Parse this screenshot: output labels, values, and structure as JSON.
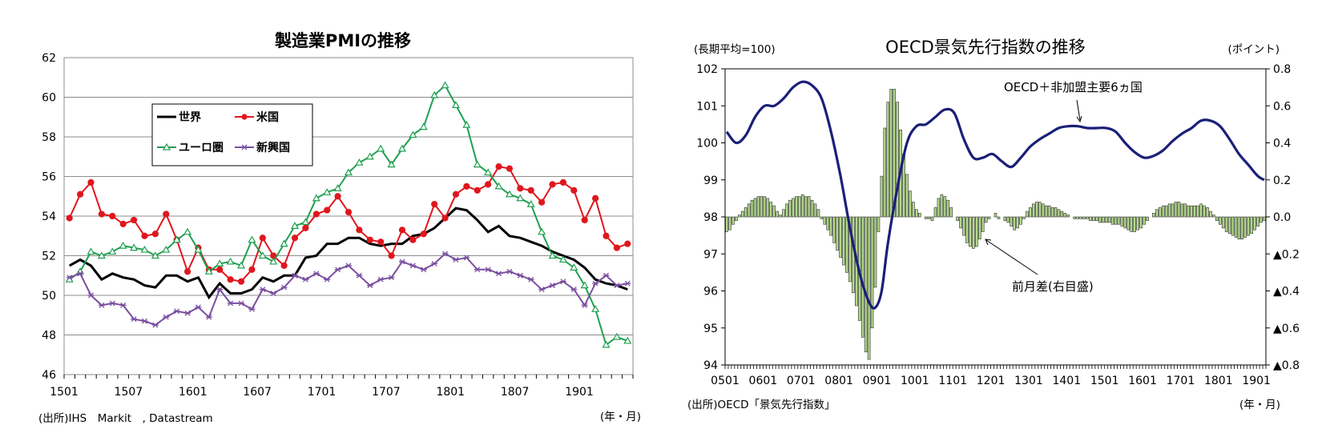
{
  "chart_data": [
    {
      "type": "line",
      "title": "製造業PMIの推移",
      "source": "(出所)IHS　Markit　, Datastream",
      "xunit": "(年・月)",
      "ylim": [
        46,
        62
      ],
      "yticks": [
        "46",
        "48",
        "50",
        "52",
        "54",
        "56",
        "58",
        "60",
        "62"
      ],
      "xticks": [
        {
          "label": "1501",
          "i": 0
        },
        {
          "label": "1507",
          "i": 6
        },
        {
          "label": "1601",
          "i": 12
        },
        {
          "label": "1607",
          "i": 18
        },
        {
          "label": "1701",
          "i": 24
        },
        {
          "label": "1707",
          "i": 30
        },
        {
          "label": "1801",
          "i": 36
        },
        {
          "label": "1807",
          "i": 42
        },
        {
          "label": "1901",
          "i": 48
        }
      ],
      "grid": true,
      "legend_position": "top-left",
      "series": [
        {
          "name": "世界",
          "color": "#000000",
          "marker": "none",
          "values": [
            51.5,
            51.8,
            51.5,
            50.8,
            51.1,
            50.9,
            50.8,
            50.5,
            50.4,
            51.0,
            51.0,
            50.7,
            50.9,
            49.9,
            50.6,
            50.1,
            50.1,
            50.3,
            50.9,
            50.7,
            51.0,
            51.0,
            51.9,
            52.0,
            52.6,
            52.6,
            52.9,
            52.9,
            52.6,
            52.5,
            52.6,
            52.6,
            53.0,
            53.1,
            53.4,
            53.9,
            54.4,
            54.3,
            53.8,
            53.2,
            53.5,
            53.0,
            52.9,
            52.7,
            52.5,
            52.2,
            52.0,
            51.8,
            51.4,
            50.8,
            50.6,
            50.5,
            50.3
          ]
        },
        {
          "name": "米国",
          "color": "#e0161d",
          "marker": "circle",
          "values": [
            53.9,
            55.1,
            55.7,
            54.1,
            54.0,
            53.6,
            53.8,
            53.0,
            53.1,
            54.1,
            52.8,
            51.2,
            52.4,
            51.3,
            51.3,
            50.8,
            50.7,
            51.3,
            52.9,
            52.0,
            51.5,
            52.9,
            53.4,
            54.1,
            54.3,
            55.0,
            54.2,
            53.3,
            52.8,
            52.7,
            52.0,
            53.3,
            52.8,
            53.1,
            54.6,
            53.9,
            55.1,
            55.5,
            55.3,
            55.6,
            56.5,
            56.4,
            55.4,
            55.3,
            54.7,
            55.6,
            55.7,
            55.3,
            53.8,
            54.9,
            53.0,
            52.4,
            52.6
          ]
        },
        {
          "name": "ユーロ圏",
          "color": "#1fa050",
          "marker": "triangle",
          "values": [
            50.8,
            51.2,
            52.2,
            52.0,
            52.2,
            52.5,
            52.4,
            52.3,
            52.0,
            52.3,
            52.8,
            53.2,
            52.3,
            51.2,
            51.6,
            51.7,
            51.5,
            52.8,
            52.0,
            51.7,
            52.6,
            53.5,
            53.7,
            54.9,
            55.2,
            55.4,
            56.2,
            56.7,
            57.0,
            57.4,
            56.6,
            57.4,
            58.1,
            58.5,
            60.1,
            60.6,
            59.6,
            58.6,
            56.6,
            56.2,
            55.5,
            55.1,
            54.9,
            54.6,
            53.2,
            52.0,
            51.8,
            51.4,
            50.5,
            49.3,
            47.5,
            47.9,
            47.7
          ]
        },
        {
          "name": "新興国",
          "color": "#7a4fa0",
          "marker": "star",
          "values": [
            50.9,
            51.1,
            50.0,
            49.5,
            49.6,
            49.5,
            48.8,
            48.7,
            48.5,
            48.9,
            49.2,
            49.1,
            49.4,
            48.9,
            50.3,
            49.6,
            49.6,
            49.3,
            50.3,
            50.1,
            50.4,
            51.0,
            50.8,
            51.1,
            50.8,
            51.3,
            51.5,
            51.0,
            50.5,
            50.8,
            50.9,
            51.7,
            51.5,
            51.3,
            51.6,
            52.1,
            51.8,
            51.9,
            51.3,
            51.3,
            51.1,
            51.2,
            51.0,
            50.8,
            50.3,
            50.5,
            50.7,
            50.3,
            49.5,
            50.6,
            51.0,
            50.5,
            50.6
          ]
        }
      ]
    },
    {
      "type": "line+bar",
      "title": "OECD景気先行指数の推移",
      "left_unit": "(長期平均=100)",
      "right_unit": "(ポイント)",
      "source": "(出所)OECD「景気先行指数」",
      "xunit": "(年・月)",
      "ylim_left": [
        94,
        102
      ],
      "ylim_right": [
        -0.8,
        0.8
      ],
      "yticks_left": [
        "94",
        "95",
        "96",
        "97",
        "98",
        "99",
        "100",
        "101",
        "102"
      ],
      "yticks_right": [
        "▲0.8",
        "▲0.6",
        "▲0.4",
        "▲0.2",
        "0.0",
        "0.2",
        "0.4",
        "0.6",
        "0.8"
      ],
      "xticks": [
        {
          "label": "0501",
          "i": 0
        },
        {
          "label": "0601",
          "i": 12
        },
        {
          "label": "0701",
          "i": 24
        },
        {
          "label": "0801",
          "i": 36
        },
        {
          "label": "0901",
          "i": 48
        },
        {
          "label": "1001",
          "i": 60
        },
        {
          "label": "1101",
          "i": 72
        },
        {
          "label": "1201",
          "i": 84
        },
        {
          "label": "1301",
          "i": 96
        },
        {
          "label": "1401",
          "i": 108
        },
        {
          "label": "1501",
          "i": 120
        },
        {
          "label": "1601",
          "i": 132
        },
        {
          "label": "1701",
          "i": 144
        },
        {
          "label": "1801",
          "i": 156
        },
        {
          "label": "1901",
          "i": 168
        }
      ],
      "annotations": [
        "OECD＋非加盟主要6ヵ国",
        "前月差(右目盛)"
      ],
      "line": {
        "name": "OECD＋非加盟主要6ヵ国",
        "color": "#1a1f78",
        "keypoints": [
          [
            0,
            100.3
          ],
          [
            3,
            100.0
          ],
          [
            6,
            100.2
          ],
          [
            9,
            100.7
          ],
          [
            12,
            101.0
          ],
          [
            15,
            101.0
          ],
          [
            18,
            101.2
          ],
          [
            21,
            101.5
          ],
          [
            24,
            101.65
          ],
          [
            27,
            101.55
          ],
          [
            30,
            101.2
          ],
          [
            33,
            100.3
          ],
          [
            36,
            99.1
          ],
          [
            39,
            97.7
          ],
          [
            42,
            96.5
          ],
          [
            45,
            95.7
          ],
          [
            47,
            95.55
          ],
          [
            49,
            96.0
          ],
          [
            51,
            97.3
          ],
          [
            54,
            98.8
          ],
          [
            57,
            100.0
          ],
          [
            60,
            100.45
          ],
          [
            63,
            100.5
          ],
          [
            66,
            100.7
          ],
          [
            69,
            100.9
          ],
          [
            72,
            100.8
          ],
          [
            75,
            100.1
          ],
          [
            78,
            99.6
          ],
          [
            81,
            99.6
          ],
          [
            84,
            99.7
          ],
          [
            87,
            99.5
          ],
          [
            90,
            99.35
          ],
          [
            93,
            99.6
          ],
          [
            96,
            99.9
          ],
          [
            99,
            100.1
          ],
          [
            102,
            100.25
          ],
          [
            105,
            100.4
          ],
          [
            108,
            100.45
          ],
          [
            111,
            100.45
          ],
          [
            114,
            100.4
          ],
          [
            117,
            100.4
          ],
          [
            120,
            100.4
          ],
          [
            123,
            100.3
          ],
          [
            126,
            100.0
          ],
          [
            129,
            99.75
          ],
          [
            132,
            99.6
          ],
          [
            135,
            99.65
          ],
          [
            138,
            99.8
          ],
          [
            141,
            100.05
          ],
          [
            144,
            100.25
          ],
          [
            147,
            100.4
          ],
          [
            150,
            100.6
          ],
          [
            153,
            100.6
          ],
          [
            156,
            100.45
          ],
          [
            159,
            100.1
          ],
          [
            162,
            99.7
          ],
          [
            165,
            99.4
          ],
          [
            168,
            99.1
          ],
          [
            170,
            99.0
          ]
        ]
      },
      "bars": {
        "name": "前月差(右目盛)",
        "color": "#b3d98c",
        "values": [
          -0.08,
          -0.07,
          -0.04,
          -0.02,
          0.01,
          0.03,
          0.05,
          0.07,
          0.09,
          0.1,
          0.11,
          0.11,
          0.11,
          0.1,
          0.08,
          0.06,
          0.03,
          0.01,
          0.04,
          0.07,
          0.09,
          0.1,
          0.11,
          0.11,
          0.12,
          0.11,
          0.11,
          0.09,
          0.07,
          0.04,
          -0.01,
          -0.04,
          -0.07,
          -0.1,
          -0.14,
          -0.18,
          -0.22,
          -0.26,
          -0.3,
          -0.35,
          -0.41,
          -0.48,
          -0.56,
          -0.65,
          -0.73,
          -0.77,
          -0.6,
          -0.38,
          -0.08,
          0.22,
          0.48,
          0.62,
          0.69,
          0.69,
          0.62,
          0.47,
          0.34,
          0.23,
          0.14,
          0.08,
          0.04,
          0.02,
          0.0,
          -0.01,
          -0.01,
          -0.02,
          0.05,
          0.1,
          0.12,
          0.11,
          0.09,
          0.05,
          0.0,
          -0.02,
          -0.06,
          -0.1,
          -0.14,
          -0.16,
          -0.17,
          -0.16,
          -0.12,
          -0.08,
          -0.03,
          -0.01,
          0.0,
          0.02,
          -0.01,
          0.0,
          -0.02,
          -0.03,
          -0.05,
          -0.07,
          -0.06,
          -0.04,
          -0.01,
          0.03,
          0.05,
          0.07,
          0.08,
          0.08,
          0.07,
          0.06,
          0.06,
          0.05,
          0.05,
          0.04,
          0.03,
          0.02,
          0.01,
          0.0,
          -0.01,
          -0.01,
          -0.01,
          -0.01,
          -0.01,
          -0.02,
          -0.02,
          -0.02,
          -0.03,
          -0.03,
          -0.03,
          -0.03,
          -0.04,
          -0.04,
          -0.04,
          -0.05,
          -0.06,
          -0.07,
          -0.08,
          -0.08,
          -0.07,
          -0.06,
          -0.04,
          -0.02,
          0.0,
          0.02,
          0.04,
          0.05,
          0.06,
          0.06,
          0.07,
          0.07,
          0.08,
          0.08,
          0.07,
          0.07,
          0.06,
          0.06,
          0.06,
          0.06,
          0.07,
          0.06,
          0.05,
          0.03,
          0.01,
          -0.02,
          -0.04,
          -0.06,
          -0.08,
          -0.09,
          -0.1,
          -0.11,
          -0.12,
          -0.12,
          -0.11,
          -0.1,
          -0.09,
          -0.07,
          -0.05,
          -0.03,
          -0.02
        ]
      }
    }
  ]
}
